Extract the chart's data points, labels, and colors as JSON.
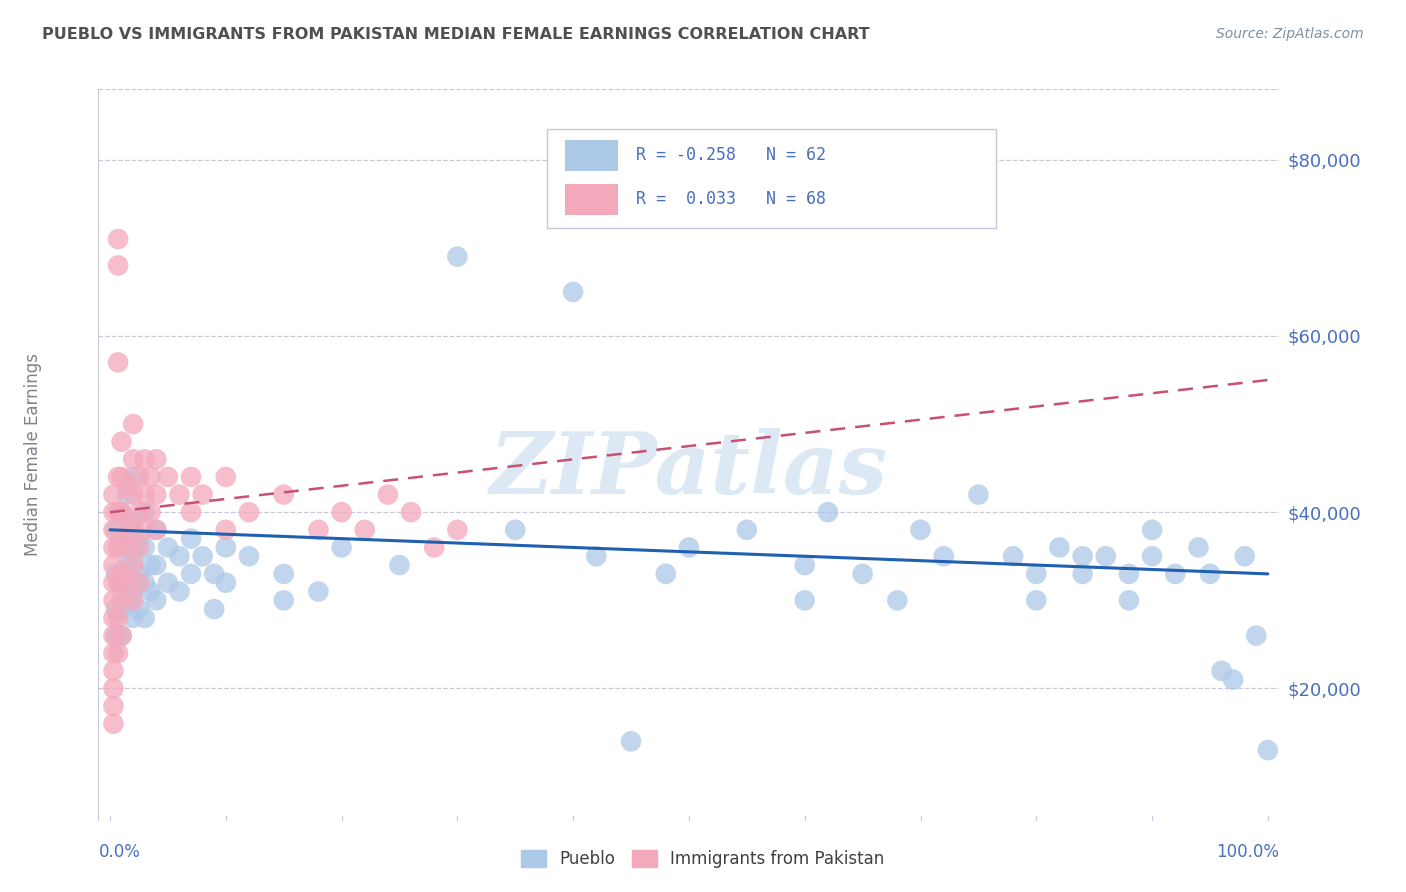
{
  "title": "PUEBLO VS IMMIGRANTS FROM PAKISTAN MEDIAN FEMALE EARNINGS CORRELATION CHART",
  "source": "Source: ZipAtlas.com",
  "ylabel": "Median Female Earnings",
  "legend_bottom": [
    "Pueblo",
    "Immigrants from Pakistan"
  ],
  "ytick_labels": [
    "$20,000",
    "$40,000",
    "$60,000",
    "$80,000"
  ],
  "ytick_values": [
    20000,
    40000,
    60000,
    80000
  ],
  "ymin": 5000,
  "ymax": 88000,
  "xmin": -0.01,
  "xmax": 1.01,
  "watermark": "ZIPatlas",
  "blue_color": "#adc9e8",
  "pink_color": "#f4a8bb",
  "blue_line_color": "#2060b0",
  "pink_line_color": "#c85070",
  "title_color": "#505050",
  "axis_color": "#8090b0",
  "label_color": "#4870c0",
  "blue_scatter": [
    [
      0.005,
      38000
    ],
    [
      0.005,
      33000
    ],
    [
      0.005,
      29000
    ],
    [
      0.005,
      26000
    ],
    [
      0.01,
      40000
    ],
    [
      0.01,
      36000
    ],
    [
      0.01,
      32000
    ],
    [
      0.01,
      29000
    ],
    [
      0.01,
      26000
    ],
    [
      0.015,
      42000
    ],
    [
      0.015,
      37000
    ],
    [
      0.015,
      34000
    ],
    [
      0.015,
      30000
    ],
    [
      0.02,
      44000
    ],
    [
      0.02,
      39000
    ],
    [
      0.02,
      35000
    ],
    [
      0.02,
      31000
    ],
    [
      0.02,
      28000
    ],
    [
      0.025,
      37000
    ],
    [
      0.025,
      33000
    ],
    [
      0.025,
      29000
    ],
    [
      0.03,
      40000
    ],
    [
      0.03,
      36000
    ],
    [
      0.03,
      32000
    ],
    [
      0.03,
      28000
    ],
    [
      0.035,
      34000
    ],
    [
      0.035,
      31000
    ],
    [
      0.04,
      38000
    ],
    [
      0.04,
      34000
    ],
    [
      0.04,
      30000
    ],
    [
      0.05,
      36000
    ],
    [
      0.05,
      32000
    ],
    [
      0.06,
      35000
    ],
    [
      0.06,
      31000
    ],
    [
      0.07,
      37000
    ],
    [
      0.07,
      33000
    ],
    [
      0.08,
      35000
    ],
    [
      0.09,
      33000
    ],
    [
      0.09,
      29000
    ],
    [
      0.1,
      36000
    ],
    [
      0.1,
      32000
    ],
    [
      0.12,
      35000
    ],
    [
      0.15,
      33000
    ],
    [
      0.15,
      30000
    ],
    [
      0.18,
      31000
    ],
    [
      0.2,
      36000
    ],
    [
      0.25,
      34000
    ],
    [
      0.3,
      69000
    ],
    [
      0.35,
      38000
    ],
    [
      0.4,
      65000
    ],
    [
      0.42,
      35000
    ],
    [
      0.45,
      14000
    ],
    [
      0.48,
      33000
    ],
    [
      0.5,
      36000
    ],
    [
      0.55,
      38000
    ],
    [
      0.6,
      34000
    ],
    [
      0.6,
      30000
    ],
    [
      0.62,
      40000
    ],
    [
      0.65,
      33000
    ],
    [
      0.68,
      30000
    ],
    [
      0.7,
      38000
    ],
    [
      0.72,
      35000
    ],
    [
      0.75,
      42000
    ],
    [
      0.78,
      35000
    ],
    [
      0.8,
      33000
    ],
    [
      0.8,
      30000
    ],
    [
      0.82,
      36000
    ],
    [
      0.84,
      35000
    ],
    [
      0.84,
      33000
    ],
    [
      0.86,
      35000
    ],
    [
      0.88,
      33000
    ],
    [
      0.88,
      30000
    ],
    [
      0.9,
      38000
    ],
    [
      0.9,
      35000
    ],
    [
      0.92,
      33000
    ],
    [
      0.94,
      36000
    ],
    [
      0.95,
      33000
    ],
    [
      0.96,
      22000
    ],
    [
      0.97,
      21000
    ],
    [
      0.98,
      35000
    ],
    [
      0.99,
      26000
    ],
    [
      1.0,
      13000
    ]
  ],
  "pink_scatter": [
    [
      0.003,
      42000
    ],
    [
      0.003,
      40000
    ],
    [
      0.003,
      38000
    ],
    [
      0.003,
      36000
    ],
    [
      0.003,
      34000
    ],
    [
      0.003,
      32000
    ],
    [
      0.003,
      30000
    ],
    [
      0.003,
      28000
    ],
    [
      0.003,
      26000
    ],
    [
      0.003,
      24000
    ],
    [
      0.003,
      22000
    ],
    [
      0.003,
      20000
    ],
    [
      0.003,
      18000
    ],
    [
      0.003,
      16000
    ],
    [
      0.007,
      71000
    ],
    [
      0.007,
      68000
    ],
    [
      0.007,
      57000
    ],
    [
      0.007,
      44000
    ],
    [
      0.007,
      40000
    ],
    [
      0.007,
      36000
    ],
    [
      0.007,
      32000
    ],
    [
      0.007,
      28000
    ],
    [
      0.007,
      24000
    ],
    [
      0.01,
      48000
    ],
    [
      0.01,
      44000
    ],
    [
      0.01,
      40000
    ],
    [
      0.01,
      37000
    ],
    [
      0.01,
      33000
    ],
    [
      0.01,
      30000
    ],
    [
      0.01,
      26000
    ],
    [
      0.015,
      43000
    ],
    [
      0.015,
      39000
    ],
    [
      0.015,
      36000
    ],
    [
      0.015,
      32000
    ],
    [
      0.02,
      50000
    ],
    [
      0.02,
      46000
    ],
    [
      0.02,
      42000
    ],
    [
      0.02,
      38000
    ],
    [
      0.02,
      34000
    ],
    [
      0.02,
      30000
    ],
    [
      0.025,
      44000
    ],
    [
      0.025,
      40000
    ],
    [
      0.025,
      36000
    ],
    [
      0.025,
      32000
    ],
    [
      0.03,
      46000
    ],
    [
      0.03,
      42000
    ],
    [
      0.03,
      38000
    ],
    [
      0.035,
      44000
    ],
    [
      0.035,
      40000
    ],
    [
      0.04,
      46000
    ],
    [
      0.04,
      42000
    ],
    [
      0.04,
      38000
    ],
    [
      0.05,
      44000
    ],
    [
      0.06,
      42000
    ],
    [
      0.07,
      44000
    ],
    [
      0.07,
      40000
    ],
    [
      0.08,
      42000
    ],
    [
      0.1,
      44000
    ],
    [
      0.1,
      38000
    ],
    [
      0.12,
      40000
    ],
    [
      0.15,
      42000
    ],
    [
      0.18,
      38000
    ],
    [
      0.2,
      40000
    ],
    [
      0.22,
      38000
    ],
    [
      0.24,
      42000
    ],
    [
      0.26,
      40000
    ],
    [
      0.28,
      36000
    ],
    [
      0.3,
      38000
    ]
  ],
  "blue_line_x": [
    0.0,
    1.0
  ],
  "blue_line_y": [
    38000,
    33000
  ],
  "pink_line_x": [
    0.0,
    1.0
  ],
  "pink_line_y": [
    40000,
    55000
  ],
  "background_color": "#ffffff",
  "grid_color": "#c8c8d8",
  "watermark_color": "#dce8f4"
}
